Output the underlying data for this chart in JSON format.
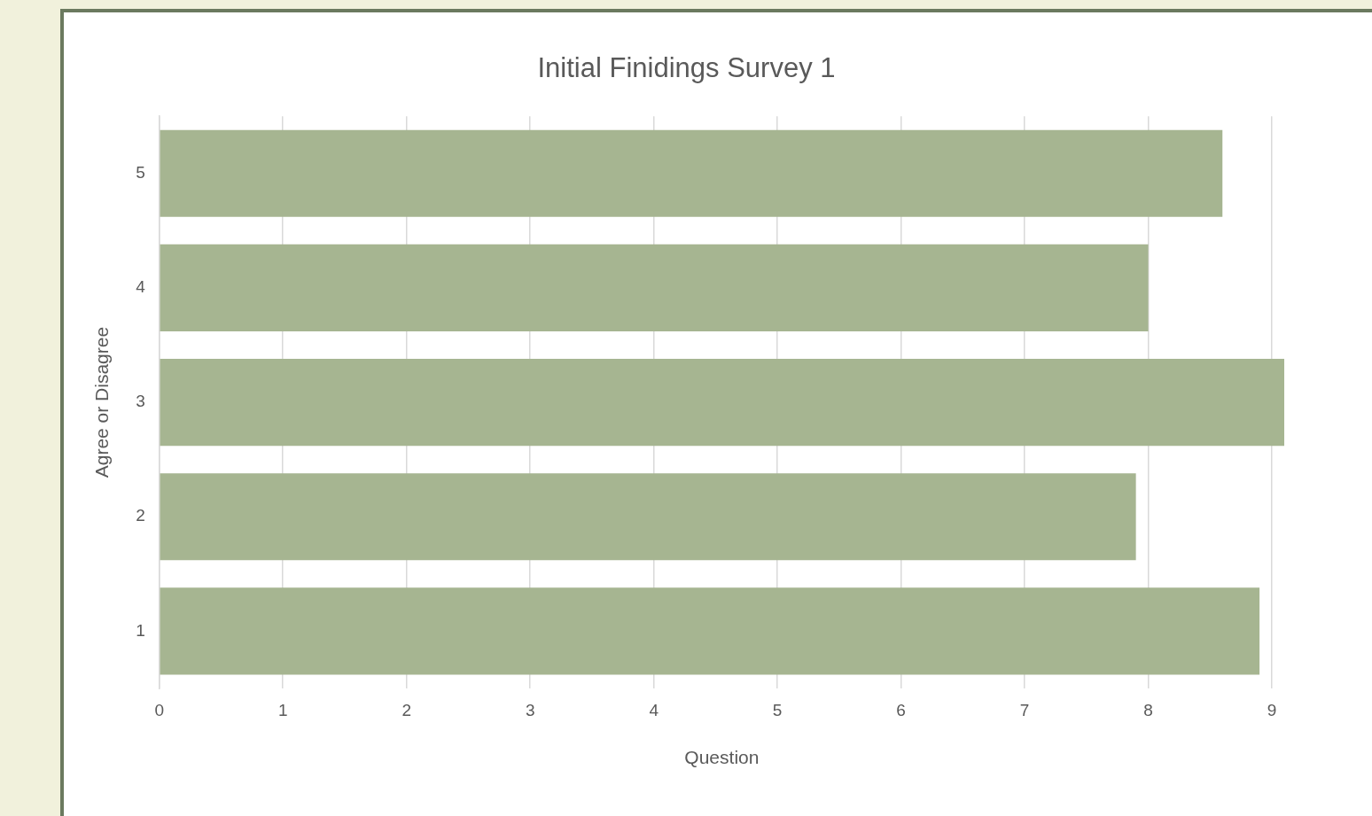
{
  "chart_data": {
    "type": "bar",
    "orientation": "horizontal",
    "title": "Initial Finidings Survey 1",
    "xlabel": "Question",
    "ylabel": "Agree or Disagree",
    "categories": [
      "5",
      "4",
      "3",
      "2",
      "1"
    ],
    "values": [
      8.6,
      8.0,
      9.1,
      7.9,
      8.9
    ],
    "color": "#a6b591",
    "xlim": [
      0,
      9.1
    ],
    "xticks": [
      0,
      1,
      2,
      3,
      4,
      5,
      6,
      7,
      8,
      9
    ],
    "grid": "x",
    "legend": false
  }
}
